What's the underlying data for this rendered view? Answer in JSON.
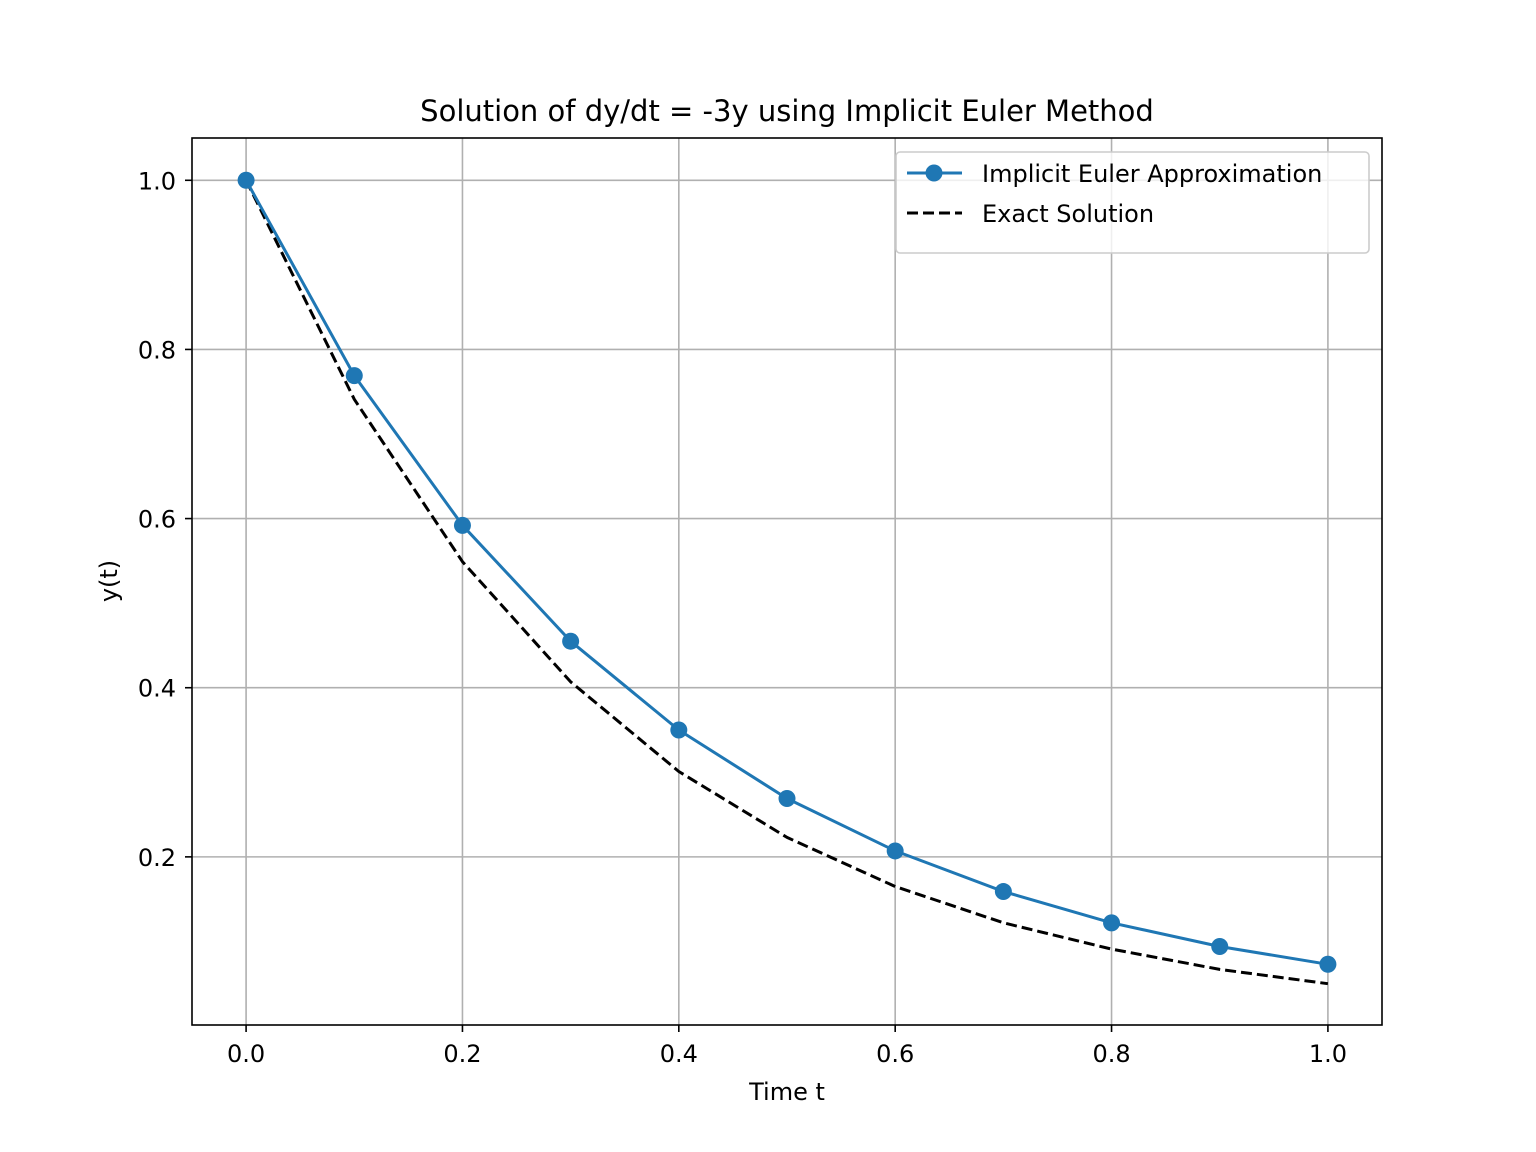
{
  "chart_data": {
    "type": "line",
    "title": "Solution of dy/dt = -3y using Implicit Euler Method",
    "xlabel": "Time t",
    "ylabel": "y(t)",
    "xlim": [
      -0.05,
      1.05
    ],
    "ylim": [
      0.0012,
      1.05
    ],
    "xticks": [
      0.0,
      0.2,
      0.4,
      0.6,
      0.8,
      1.0
    ],
    "xtick_labels": [
      "0.0",
      "0.2",
      "0.4",
      "0.6",
      "0.8",
      "1.0"
    ],
    "yticks": [
      0.2,
      0.4,
      0.6,
      0.8,
      1.0
    ],
    "ytick_labels": [
      "0.2",
      "0.4",
      "0.6",
      "0.8",
      "1.0"
    ],
    "grid": true,
    "legend_position": "top-right",
    "series": [
      {
        "name": "Implicit Euler Approximation",
        "color": "#1f77b4",
        "style": "solid",
        "marker": "circle",
        "x": [
          0.0,
          0.1,
          0.2,
          0.3,
          0.4,
          0.5,
          0.6,
          0.7,
          0.8,
          0.9,
          1.0
        ],
        "y": [
          1.0,
          0.769,
          0.592,
          0.455,
          0.35,
          0.269,
          0.207,
          0.159,
          0.122,
          0.094,
          0.073
        ]
      },
      {
        "name": "Exact Solution",
        "color": "#000000",
        "style": "dashed",
        "marker": "none",
        "x": [
          0.0,
          0.1,
          0.2,
          0.3,
          0.4,
          0.5,
          0.6,
          0.7,
          0.8,
          0.9,
          1.0
        ],
        "y": [
          1.0,
          0.741,
          0.549,
          0.407,
          0.301,
          0.223,
          0.165,
          0.122,
          0.091,
          0.067,
          0.05
        ]
      }
    ]
  }
}
